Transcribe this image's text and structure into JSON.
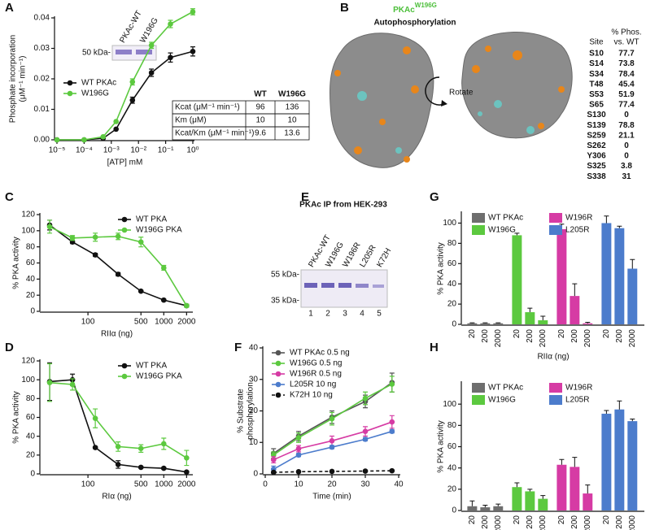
{
  "panel_labels": [
    "A",
    "B",
    "C",
    "D",
    "E",
    "F",
    "G",
    "H"
  ],
  "chart_data": [
    {
      "type": "line",
      "xscale": "log",
      "ylabel": [
        "Phosphate incorporation",
        "(μM⁻¹ min⁻¹)"
      ],
      "xlabel": "[ATP] mM",
      "xlim": [
        1e-05,
        1
      ],
      "ylim": [
        0,
        0.04
      ],
      "xticks": [
        {
          "value": 1e-05,
          "label": "10⁻⁵"
        },
        {
          "value": 0.0001,
          "label": "10⁻⁴"
        },
        {
          "value": 0.001,
          "label": "10⁻³"
        },
        {
          "value": 0.01,
          "label": "10⁻²"
        },
        {
          "value": 0.1,
          "label": "10⁻¹"
        },
        {
          "value": 1,
          "label": "10⁰"
        }
      ],
      "yticks": [
        {
          "value": 0,
          "label": "0.00"
        },
        {
          "value": 0.01,
          "label": "0.01"
        },
        {
          "value": 0.02,
          "label": "0.02"
        },
        {
          "value": 0.03,
          "label": "0.03"
        },
        {
          "value": 0.04,
          "label": "0.04"
        }
      ],
      "legend": "center left",
      "x": [
        1e-05,
        0.0001,
        0.0005,
        0.0015,
        0.006,
        0.03,
        0.15,
        1
      ],
      "series": [
        {
          "name": "WT PKAc",
          "color": "#111111",
          "values": [
            0,
            0,
            0.0005,
            0.0035,
            0.013,
            0.022,
            0.027,
            0.029
          ],
          "errors": [
            0,
            0,
            0,
            0,
            0.001,
            0.0012,
            0.0015,
            0.0015
          ]
        },
        {
          "name": "W196G",
          "color": "#5cc93f",
          "values": [
            0,
            0,
            0.001,
            0.006,
            0.019,
            0.031,
            0.038,
            0.042
          ],
          "errors": [
            0,
            0,
            0,
            0,
            0.001,
            0.001,
            0.0012,
            0.001
          ]
        }
      ],
      "inset_gel": {
        "lanes": [
          {
            "label": "PKAc-WT",
            "color": "#222222"
          },
          {
            "label": "W196G",
            "color": "#4cbf3a"
          }
        ],
        "marker": "50 kDa-"
      },
      "table": {
        "columns": [
          "WT",
          "W196G"
        ],
        "rows": [
          [
            "Kcat (μM⁻¹ min⁻¹)",
            96,
            136
          ],
          [
            "Km (μM)",
            10,
            10
          ],
          [
            "Kcat/Km (μM⁻¹ min⁻¹)",
            9.6,
            13.6
          ]
        ]
      }
    },
    {
      "type": "line",
      "xscale": "log",
      "ylabel": [
        "% PKA activity"
      ],
      "xlabel": "RIIα (ng)",
      "xlim": [
        25,
        2300
      ],
      "ylim": [
        0,
        120
      ],
      "xticks": [
        100,
        500,
        1000,
        2000
      ],
      "yticks": [
        0,
        20,
        40,
        60,
        80,
        100,
        120
      ],
      "legend": "upper right",
      "x": [
        31.25,
        62.5,
        125,
        250,
        500,
        1000,
        2000
      ],
      "series": [
        {
          "name": "WT PKA",
          "color": "#111111",
          "values": [
            107,
            86,
            70,
            46,
            25,
            14,
            7
          ],
          "errors": [
            6,
            2,
            2,
            2,
            1,
            1,
            1
          ]
        },
        {
          "name": "W196G PKA",
          "color": "#5cc93f",
          "values": [
            105,
            91,
            92,
            93,
            86,
            54,
            7
          ],
          "errors": [
            8,
            3,
            5,
            4,
            6,
            3,
            2
          ]
        }
      ]
    },
    {
      "type": "line",
      "xscale": "log",
      "ylabel": [
        "% PKA activity"
      ],
      "xlabel": "RIα (ng)",
      "xlim": [
        25,
        2300
      ],
      "ylim": [
        0,
        120
      ],
      "xticks": [
        100,
        500,
        1000,
        2000
      ],
      "yticks": [
        0,
        20,
        40,
        60,
        80,
        100,
        120
      ],
      "legend": "upper right",
      "x": [
        31.25,
        62.5,
        125,
        250,
        500,
        1000,
        2000
      ],
      "series": [
        {
          "name": "WT PKA",
          "color": "#111111",
          "values": [
            98,
            100,
            28,
            10,
            7,
            6,
            2
          ],
          "errors": [
            20,
            6,
            1,
            4,
            1,
            1,
            1
          ]
        },
        {
          "name": "W196G PKA",
          "color": "#5cc93f",
          "values": [
            97,
            95,
            59,
            29,
            27,
            32,
            17
          ],
          "errors": [
            20,
            6,
            10,
            5,
            4,
            6,
            8
          ]
        }
      ]
    },
    {
      "type": "line",
      "ylabel": [
        "% Substrate",
        "phosphorylation"
      ],
      "xlabel": "Time (min)",
      "xlim": [
        0,
        40
      ],
      "ylim": [
        0,
        40
      ],
      "xticks": [
        0,
        10,
        20,
        30,
        40
      ],
      "yticks": [
        0,
        10,
        20,
        30,
        40
      ],
      "legend": "upper left",
      "x": [
        2.5,
        10,
        20,
        30,
        38
      ],
      "series": [
        {
          "name": "WT PKAc 0.5 ng",
          "color": "#555555",
          "values": [
            6.5,
            12,
            18,
            23,
            29
          ],
          "errors": [
            1.5,
            1.5,
            2,
            2,
            3
          ]
        },
        {
          "name": "W196G 0.5 ng",
          "color": "#5cc93f",
          "values": [
            6,
            11.5,
            17.5,
            24,
            28.5
          ],
          "errors": [
            1,
            1.5,
            2,
            2,
            2.5
          ]
        },
        {
          "name": "W196R 0.5 ng",
          "color": "#d63ba4",
          "values": [
            4.5,
            8,
            10.5,
            13.5,
            16.5
          ],
          "errors": [
            1,
            1,
            1.5,
            1.5,
            2
          ]
        },
        {
          "name": "L205R 10 ng",
          "color": "#4c7ccc",
          "values": [
            1.5,
            6,
            8.5,
            11,
            13.5
          ],
          "errors": [
            1,
            0.5,
            0.5,
            0.5,
            0.5
          ]
        },
        {
          "name": "K72H 10 ng",
          "color": "#111111",
          "dashed": true,
          "values": [
            0.5,
            0.7,
            0.8,
            0.9,
            1
          ],
          "errors": [
            0.2,
            0.2,
            0.2,
            0.2,
            0.2
          ]
        }
      ]
    },
    {
      "type": "bar",
      "ylabel": [
        "% PKA activity"
      ],
      "xlabel": "RIIα (ng)",
      "ylim": [
        0,
        110
      ],
      "yticks": [
        0,
        20,
        40,
        60,
        80,
        100
      ],
      "legend": "upper left",
      "legend_columns": 2,
      "categories": [
        "20",
        "200",
        "2000"
      ],
      "series": [
        {
          "name": "WT PKAc",
          "color": "#6e6e6e",
          "values": [
            1,
            1,
            1
          ],
          "errors": [
            0.5,
            0.5,
            0.5
          ]
        },
        {
          "name": "W196G",
          "color": "#5cc93f",
          "values": [
            88,
            12,
            4
          ],
          "errors": [
            2,
            4,
            4
          ]
        },
        {
          "name": "W196R",
          "color": "#d63ba4",
          "values": [
            94,
            28,
            1
          ],
          "errors": [
            5,
            12,
            1
          ]
        },
        {
          "name": "L205R",
          "color": "#4c7ccc",
          "values": [
            100,
            95,
            55
          ],
          "errors": [
            7,
            2,
            9
          ]
        }
      ]
    },
    {
      "type": "bar",
      "ylabel": [
        "% PKA activity"
      ],
      "xlabel": "RIα (ng)",
      "ylim": [
        0,
        120
      ],
      "yticks": [
        0,
        20,
        40,
        60,
        80,
        100
      ],
      "legend": "upper left",
      "legend_columns": 2,
      "categories": [
        "20",
        "200",
        "2000"
      ],
      "series": [
        {
          "name": "WT PKAc",
          "color": "#6e6e6e",
          "values": [
            4,
            3,
            4
          ],
          "errors": [
            5,
            2,
            2
          ]
        },
        {
          "name": "W196G",
          "color": "#5cc93f",
          "values": [
            22,
            18,
            11
          ],
          "errors": [
            4,
            2,
            3
          ]
        },
        {
          "name": "W196R",
          "color": "#d63ba4",
          "values": [
            43,
            41,
            16
          ],
          "errors": [
            5,
            9,
            8
          ]
        },
        {
          "name": "L205R",
          "color": "#4c7ccc",
          "values": [
            91,
            95,
            84
          ],
          "errors": [
            3,
            8,
            2
          ]
        }
      ]
    }
  ],
  "panel_b": {
    "title": "PKAc",
    "title_superscript": "W196G",
    "subtitle": "Autophosphorylation",
    "rotate_label": "Rotate",
    "header": [
      "Site",
      "% Phos.",
      "vs. WT"
    ],
    "rows": [
      {
        "site": "S10",
        "value": 77.7,
        "color": "#e0801c"
      },
      {
        "site": "S14",
        "value": 73.8,
        "color": "#e0801c"
      },
      {
        "site": "S34",
        "value": 78.4,
        "color": "#e0801c"
      },
      {
        "site": "T48",
        "value": 45.4,
        "color": "#e0801c"
      },
      {
        "site": "S53",
        "value": 51.9,
        "color": "#e0801c"
      },
      {
        "site": "S65",
        "value": 77.4,
        "color": "#e0801c"
      },
      {
        "site": "S130",
        "value": 0,
        "color": "#5fa9b3"
      },
      {
        "site": "S139",
        "value": 78.8,
        "color": "#e0801c"
      },
      {
        "site": "S259",
        "value": 21.1,
        "color": "#e0801c"
      },
      {
        "site": "S262",
        "value": 0,
        "color": "#5fa9b3"
      },
      {
        "site": "Y306",
        "value": 0,
        "color": "#5fa9b3"
      },
      {
        "site": "S325",
        "value": 3.8,
        "color": "#5fa9b3"
      },
      {
        "site": "S338",
        "value": 31,
        "color": "#e0801c"
      }
    ]
  },
  "panel_e": {
    "title": "PKAc IP from HEK-293",
    "lanes": [
      {
        "label": "PKAc-WT",
        "color": "#222222"
      },
      {
        "label": "W196G",
        "color": "#4cbf3a"
      },
      {
        "label": "W196R",
        "color": "#c2188f"
      },
      {
        "label": "L205R",
        "color": "#3f6fb8"
      },
      {
        "label": "K72H",
        "color": "#111111"
      }
    ],
    "lane_numbers": [
      1,
      2,
      3,
      4,
      5
    ],
    "markers": [
      "55 kDa-",
      "35 kDa-"
    ]
  }
}
